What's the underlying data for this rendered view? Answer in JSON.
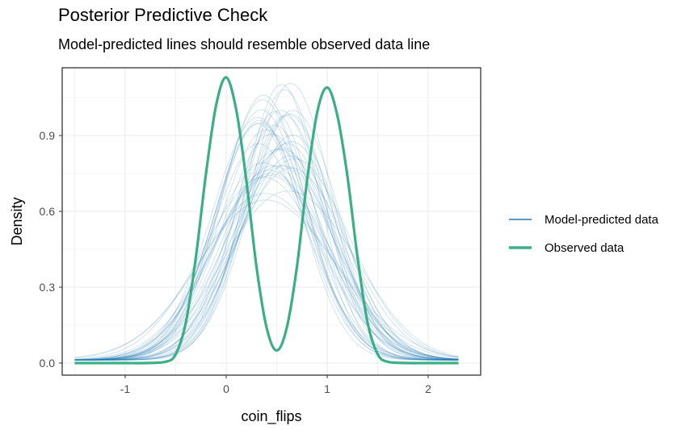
{
  "chart_data": {
    "type": "line",
    "title": "Posterior Predictive Check",
    "subtitle": "Model-predicted lines should resemble observed data line",
    "xlabel": "coin_flips",
    "ylabel": "Density",
    "xlim": [
      -1.5,
      2.3
    ],
    "ylim": [
      0,
      1.13
    ],
    "xticks": [
      -1,
      0,
      1,
      2
    ],
    "xtick_labels": [
      "-1",
      "0",
      "1",
      "2"
    ],
    "yticks": [
      0.0,
      0.3,
      0.6,
      0.9
    ],
    "ytick_labels": [
      "0.0",
      "0.3",
      "0.6",
      "0.9"
    ],
    "grid": true,
    "legend_position": "right",
    "legend": [
      "Model-predicted data",
      "Observed data"
    ],
    "colors": {
      "predicted": "#1f78b4",
      "observed": "#3aae85",
      "grid": "#ebebeb",
      "panel_border": "#333333"
    },
    "observed": {
      "name": "Observed data",
      "x": [
        -1.5,
        -1.2,
        -1.0,
        -0.8,
        -0.6,
        -0.5,
        -0.4,
        -0.3,
        -0.2,
        -0.1,
        0.0,
        0.1,
        0.2,
        0.3,
        0.4,
        0.5,
        0.6,
        0.7,
        0.8,
        0.9,
        1.0,
        1.1,
        1.2,
        1.3,
        1.4,
        1.5,
        1.6,
        1.8,
        2.0,
        2.3
      ],
      "y": [
        0.0,
        0.0,
        0.0,
        0.0,
        0.005,
        0.035,
        0.16,
        0.42,
        0.75,
        1.02,
        1.13,
        1.0,
        0.72,
        0.38,
        0.14,
        0.05,
        0.14,
        0.38,
        0.72,
        0.99,
        1.09,
        0.98,
        0.74,
        0.42,
        0.16,
        0.035,
        0.005,
        0.0,
        0.0,
        0.0
      ]
    },
    "predicted": {
      "name": "Model-predicted data",
      "x": [
        -1.5,
        -1.2,
        -1.0,
        -0.8,
        -0.6,
        -0.4,
        -0.2,
        0.0,
        0.2,
        0.4,
        0.5,
        0.6,
        0.8,
        1.0,
        1.2,
        1.4,
        1.6,
        1.8,
        2.0,
        2.3
      ],
      "y_typical": [
        0.01,
        0.03,
        0.06,
        0.11,
        0.19,
        0.31,
        0.45,
        0.6,
        0.73,
        0.8,
        0.81,
        0.8,
        0.73,
        0.6,
        0.45,
        0.31,
        0.19,
        0.11,
        0.05,
        0.01
      ],
      "peak_range": [
        0.65,
        1.08
      ],
      "n_draws": 40
    }
  }
}
